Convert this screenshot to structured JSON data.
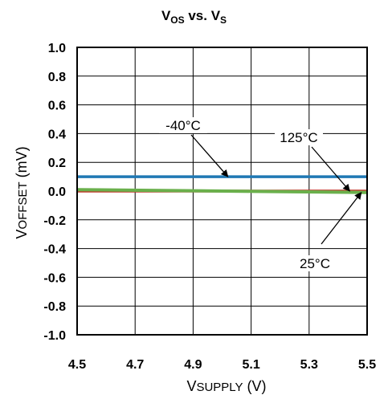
{
  "chart_data": {
    "type": "line",
    "title_main": "V",
    "title_sub1": "OS",
    "title_mid": " vs. V",
    "title_sub2": "S",
    "xlabel_main": "V",
    "xlabel_small": "SUPPLY",
    "xlabel_unit": " (V)",
    "ylabel_main": "V",
    "ylabel_small": "OFFSET",
    "ylabel_unit": " (mV)",
    "xlim": [
      4.5,
      5.5
    ],
    "ylim": [
      -1.0,
      1.0
    ],
    "x_ticks": [
      "4.5",
      "4.7",
      "4.9",
      "5.1",
      "5.3",
      "5.5"
    ],
    "y_ticks": [
      "1.0",
      "0.8",
      "0.6",
      "0.4",
      "0.2",
      "0.0",
      "-0.2",
      "-0.4",
      "-0.6",
      "-0.8",
      "-1.0"
    ],
    "grid": true,
    "series": [
      {
        "name": "-40°C",
        "color": "#1f78b4",
        "x": [
          4.5,
          5.5
        ],
        "y": [
          0.1,
          0.1
        ]
      },
      {
        "name": "125°C",
        "color": "#c0392b",
        "x": [
          4.5,
          4.75,
          5.0,
          5.25,
          5.5
        ],
        "y": [
          0.0,
          0.0,
          0.0,
          0.0,
          0.0
        ]
      },
      {
        "name": "25°C",
        "color": "#6ab04c",
        "x": [
          4.5,
          4.75,
          5.0,
          5.25,
          5.5
        ],
        "y": [
          0.01,
          0.005,
          0.0,
          -0.005,
          -0.01
        ]
      }
    ],
    "annotations": [
      {
        "text": "-40°C",
        "series": "-40°C"
      },
      {
        "text": "125°C",
        "series": "125°C"
      },
      {
        "text": "25°C",
        "series": "25°C"
      }
    ]
  }
}
